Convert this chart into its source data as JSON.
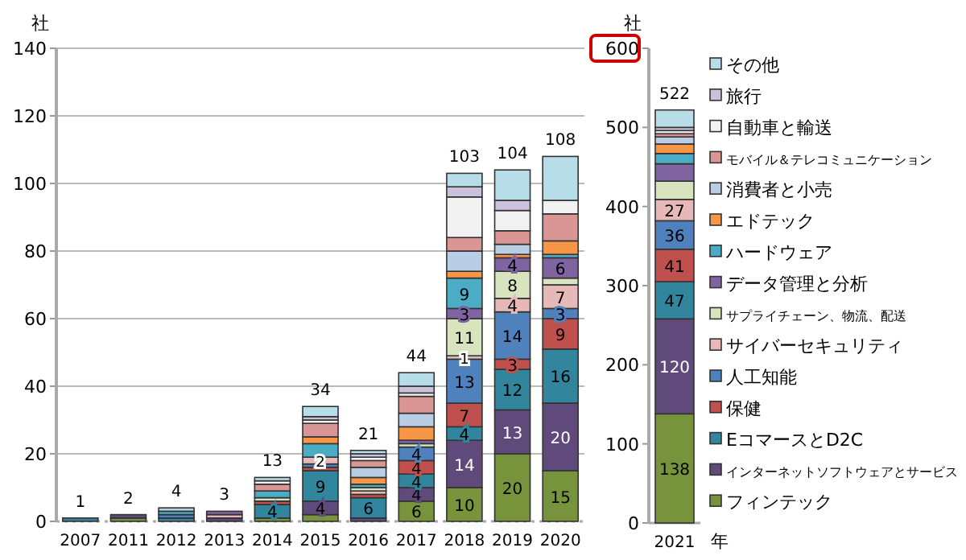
{
  "chart_data": [
    {
      "type": "bar",
      "stacked": true,
      "ylabel": "社",
      "categories": [
        "2007",
        "2011",
        "2012",
        "2013",
        "2014",
        "2015",
        "2016",
        "2017",
        "2018",
        "2019",
        "2020"
      ],
      "ylim": [
        0,
        140
      ],
      "yticks": [
        0,
        20,
        40,
        60,
        80,
        100,
        120,
        140
      ],
      "grid": "y",
      "totals": [
        "1",
        "2",
        "4",
        "3",
        "13",
        "34",
        "21",
        "44",
        "103",
        "104",
        "108"
      ],
      "series": [
        {
          "color": "#77933c",
          "values": [
            0,
            1,
            0,
            0,
            1,
            2,
            0,
            6,
            10,
            20,
            15
          ],
          "value_labels": [
            null,
            null,
            null,
            null,
            null,
            null,
            null,
            "6",
            "10",
            "20",
            "15"
          ]
        },
        {
          "color": "#604a7b",
          "values": [
            0,
            1,
            0,
            1,
            0,
            4,
            1,
            4,
            14,
            13,
            20
          ],
          "value_labels": [
            null,
            null,
            null,
            null,
            null,
            "4",
            null,
            "4",
            "14",
            "13",
            "20"
          ]
        },
        {
          "color": "#31859c",
          "values": [
            1,
            0,
            1,
            0,
            4,
            9,
            6,
            4,
            4,
            12,
            16
          ],
          "value_labels": [
            null,
            null,
            null,
            null,
            "4",
            "9",
            "6",
            "4",
            "4",
            "12",
            "16"
          ]
        },
        {
          "color": "#c0504d",
          "values": [
            0,
            0,
            0,
            0,
            1,
            1,
            1,
            4,
            7,
            3,
            9
          ],
          "value_labels": [
            null,
            null,
            null,
            null,
            null,
            null,
            null,
            "4",
            "7",
            "3",
            "9"
          ]
        },
        {
          "color": "#4f81bd",
          "values": [
            0,
            0,
            1,
            0,
            0,
            1,
            0,
            4,
            13,
            14,
            3
          ],
          "value_labels": [
            null,
            null,
            null,
            null,
            null,
            null,
            null,
            "4",
            "13",
            "14",
            "3"
          ]
        },
        {
          "color": "#e6b9b8",
          "values": [
            0,
            0,
            0,
            1,
            0,
            2,
            1,
            0,
            1,
            4,
            7
          ],
          "value_labels": [
            null,
            null,
            null,
            null,
            null,
            "2",
            null,
            null,
            "1",
            "4",
            "7"
          ]
        },
        {
          "color": "#d7e4bd",
          "values": [
            0,
            0,
            0,
            0,
            1,
            0,
            1,
            1,
            11,
            8,
            2
          ],
          "value_labels": [
            null,
            null,
            null,
            null,
            null,
            null,
            null,
            null,
            "11",
            "8",
            null
          ]
        },
        {
          "color": "#8064a2",
          "values": [
            0,
            0,
            0,
            1,
            0,
            0,
            0,
            1,
            3,
            4,
            6
          ],
          "value_labels": [
            null,
            null,
            null,
            null,
            null,
            null,
            null,
            null,
            "3",
            "4",
            "6"
          ]
        },
        {
          "color": "#4bacc6",
          "values": [
            0,
            0,
            1,
            0,
            2,
            4,
            1,
            0,
            9,
            0,
            1
          ],
          "value_labels": [
            null,
            null,
            null,
            null,
            null,
            null,
            null,
            null,
            "9",
            null,
            null
          ]
        },
        {
          "color": "#f79646",
          "values": [
            0,
            0,
            0,
            0,
            0,
            2,
            2,
            4,
            2,
            1,
            4
          ]
        },
        {
          "color": "#b9cde5",
          "values": [
            0,
            0,
            1,
            0,
            0,
            0,
            3,
            4,
            6,
            3,
            0
          ]
        },
        {
          "color": "#d99694",
          "values": [
            0,
            0,
            0,
            0,
            2,
            4,
            2,
            5,
            4,
            4,
            8
          ]
        },
        {
          "color": "#f2f2f2",
          "values": [
            0,
            0,
            0,
            0,
            1,
            1,
            1,
            1,
            12,
            6,
            4
          ]
        },
        {
          "color": "#ccc1da",
          "values": [
            0,
            0,
            0,
            0,
            0,
            1,
            1,
            2,
            3,
            3,
            0
          ]
        },
        {
          "color": "#b7dee8",
          "values": [
            0,
            0,
            0,
            0,
            1,
            3,
            1,
            4,
            4,
            9,
            13
          ]
        }
      ]
    },
    {
      "type": "bar",
      "stacked": true,
      "ylabel": "社",
      "xlabel": "年",
      "categories": [
        "2021"
      ],
      "ylim": [
        0,
        600
      ],
      "yticks": [
        0,
        100,
        200,
        300,
        400,
        500,
        600
      ],
      "grid": false,
      "legend": "right",
      "totals": [
        "522"
      ],
      "series": [
        {
          "name": "フィンテック",
          "color": "#77933c",
          "values": [
            138
          ],
          "value_labels": [
            "138"
          ]
        },
        {
          "name": "インターネットソフトウェアとサービス",
          "color": "#604a7b",
          "values": [
            120
          ],
          "value_labels": [
            "120"
          ]
        },
        {
          "name": "EコマースとD2C",
          "color": "#31859c",
          "values": [
            47
          ],
          "value_labels": [
            "47"
          ]
        },
        {
          "name": "保健",
          "color": "#c0504d",
          "values": [
            41
          ],
          "value_labels": [
            "41"
          ]
        },
        {
          "name": "人工知能",
          "color": "#4f81bd",
          "values": [
            36
          ],
          "value_labels": [
            "36"
          ]
        },
        {
          "name": "サイバーセキュリティ",
          "color": "#e6b9b8",
          "values": [
            27
          ],
          "value_labels": [
            "27"
          ]
        },
        {
          "name": "サプライチェーン、物流、配送",
          "color": "#d7e4bd",
          "values": [
            23
          ]
        },
        {
          "name": "データ管理と分析",
          "color": "#8064a2",
          "values": [
            22
          ]
        },
        {
          "name": "ハードウェア",
          "color": "#4bacc6",
          "values": [
            13
          ]
        },
        {
          "name": "エドテック",
          "color": "#f79646",
          "values": [
            12
          ]
        },
        {
          "name": "消費者と小売",
          "color": "#b9cde5",
          "values": [
            9
          ]
        },
        {
          "name": "モバイル＆テレコミュニケーション",
          "color": "#d99694",
          "values": [
            4
          ]
        },
        {
          "name": "自動車と輸送",
          "color": "#f2f2f2",
          "values": [
            4
          ]
        },
        {
          "name": "旅行",
          "color": "#ccc1da",
          "values": [
            4
          ]
        },
        {
          "name": "その他",
          "color": "#b7dee8",
          "values": [
            22
          ]
        }
      ]
    }
  ]
}
